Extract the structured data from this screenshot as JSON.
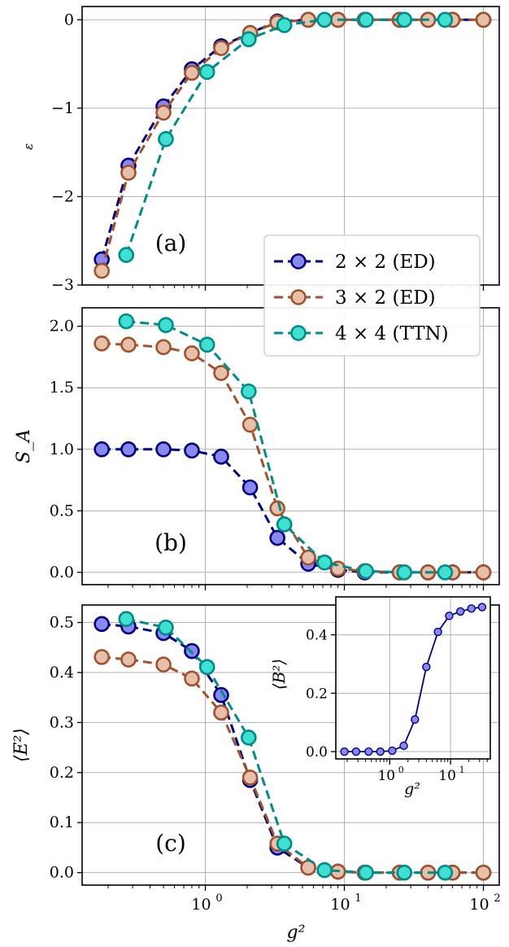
{
  "chart_data": [
    {
      "id": "a",
      "type": "line",
      "panel_label": "(a)",
      "ylabel": "ε",
      "x_scale": "log",
      "xlim": [
        0.13,
        130
      ],
      "ylim": [
        -3.0,
        0.15
      ],
      "yticks": [
        0,
        -1,
        -2,
        -3
      ],
      "ytick_labels": [
        "0",
        "−1",
        "−2",
        "−3"
      ],
      "grid": true,
      "series": [
        {
          "name": "2 × 2 (ED)",
          "color": "#000080",
          "fill": "#8888ee",
          "dashed": true,
          "x": [
            0.18,
            0.28,
            0.5,
            0.8,
            1.3,
            2.1,
            3.3,
            5.5,
            9,
            14,
            25,
            40,
            60,
            100
          ],
          "y": [
            -2.71,
            -1.65,
            -0.98,
            -0.56,
            -0.3,
            -0.15,
            -0.02,
            0,
            0,
            0,
            0,
            0,
            0,
            0
          ]
        },
        {
          "name": "3 × 2 (ED)",
          "color": "#a0522d",
          "fill": "#e6c0a8",
          "dashed": true,
          "x": [
            0.18,
            0.28,
            0.5,
            0.8,
            1.3,
            2.1,
            3.3,
            5.5,
            9,
            14,
            25,
            40,
            60,
            100
          ],
          "y": [
            -2.84,
            -1.73,
            -1.05,
            -0.6,
            -0.32,
            -0.15,
            -0.03,
            0,
            0,
            0,
            0,
            0,
            0,
            0
          ]
        },
        {
          "name": "4 × 4 (TTN)",
          "color": "#008b8b",
          "fill": "#40e0d0",
          "dashed": true,
          "x": [
            0.27,
            0.52,
            1.03,
            2.05,
            3.7,
            7.2,
            14.3,
            27,
            53
          ],
          "y": [
            -2.66,
            -1.35,
            -0.59,
            -0.22,
            -0.06,
            0,
            0,
            0,
            0
          ]
        }
      ]
    },
    {
      "id": "b",
      "type": "line",
      "panel_label": "(b)",
      "ylabel": "S_A",
      "x_scale": "log",
      "xlim": [
        0.13,
        130
      ],
      "ylim": [
        -0.1,
        2.15
      ],
      "yticks": [
        0.0,
        0.5,
        1.0,
        1.5,
        2.0
      ],
      "ytick_labels": [
        "0.0",
        "0.5",
        "1.0",
        "1.5",
        "2.0"
      ],
      "grid": true,
      "series": [
        {
          "name": "2 × 2 (ED)",
          "color": "#000080",
          "fill": "#8888ee",
          "dashed": true,
          "x": [
            0.18,
            0.28,
            0.5,
            0.8,
            1.3,
            2.1,
            3.3,
            5.5,
            9,
            14,
            25,
            40,
            60,
            100
          ],
          "y": [
            1.0,
            1.0,
            1.0,
            0.99,
            0.94,
            0.69,
            0.28,
            0.07,
            0.02,
            0,
            0,
            0,
            0,
            0
          ]
        },
        {
          "name": "3 × 2 (ED)",
          "color": "#a0522d",
          "fill": "#e6c0a8",
          "dashed": true,
          "x": [
            0.18,
            0.28,
            0.5,
            0.8,
            1.3,
            2.1,
            3.3,
            5.5,
            9,
            14,
            25,
            40,
            60,
            100
          ],
          "y": [
            1.86,
            1.85,
            1.83,
            1.78,
            1.62,
            1.2,
            0.52,
            0.12,
            0.03,
            0.01,
            0,
            0,
            0,
            0
          ]
        },
        {
          "name": "4 × 4 (TTN)",
          "color": "#008b8b",
          "fill": "#40e0d0",
          "dashed": true,
          "x": [
            0.27,
            0.52,
            1.03,
            2.05,
            3.7,
            7.2,
            14.3,
            27,
            53
          ],
          "y": [
            2.04,
            2.01,
            1.85,
            1.47,
            0.39,
            0.08,
            0.01,
            0,
            0
          ]
        }
      ]
    },
    {
      "id": "c",
      "type": "line",
      "panel_label": "(c)",
      "ylabel": "⟨E²⟩",
      "xlabel": "g²",
      "x_scale": "log",
      "xlim": [
        0.13,
        130
      ],
      "ylim": [
        -0.025,
        0.535
      ],
      "yticks": [
        0.0,
        0.1,
        0.2,
        0.3,
        0.4,
        0.5
      ],
      "ytick_labels": [
        "0.0",
        "0.1",
        "0.2",
        "0.3",
        "0.4",
        "0.5"
      ],
      "xticks": [
        1,
        10,
        100
      ],
      "xtick_bases": [
        "10",
        "10",
        "10"
      ],
      "xtick_exps": [
        "0",
        "1",
        "2"
      ],
      "grid": true,
      "series": [
        {
          "name": "2 × 2 (ED)",
          "color": "#000080",
          "fill": "#8888ee",
          "dashed": true,
          "x": [
            0.18,
            0.28,
            0.5,
            0.8,
            1.3,
            2.1,
            3.3,
            5.5,
            9,
            14,
            25,
            40,
            60,
            100
          ],
          "y": [
            0.497,
            0.492,
            0.479,
            0.443,
            0.355,
            0.185,
            0.05,
            0.01,
            0.002,
            0,
            0,
            0,
            0,
            0
          ]
        },
        {
          "name": "3 × 2 (ED)",
          "color": "#a0522d",
          "fill": "#e6c0a8",
          "dashed": true,
          "x": [
            0.18,
            0.28,
            0.5,
            0.8,
            1.3,
            2.1,
            3.3,
            5.5,
            9,
            14,
            25,
            40,
            60,
            100
          ],
          "y": [
            0.431,
            0.426,
            0.416,
            0.388,
            0.32,
            0.19,
            0.058,
            0.01,
            0.002,
            0,
            0,
            0,
            0,
            0
          ]
        },
        {
          "name": "4 × 4 (TTN)",
          "color": "#008b8b",
          "fill": "#40e0d0",
          "dashed": true,
          "x": [
            0.27,
            0.52,
            1.03,
            2.05,
            3.7,
            7.2,
            14.3,
            27,
            53
          ],
          "y": [
            0.507,
            0.49,
            0.411,
            0.27,
            0.058,
            0.005,
            0,
            0,
            0
          ]
        }
      ]
    },
    {
      "id": "inset",
      "type": "line",
      "ylabel": "⟨B²⟩",
      "xlabel": "g²",
      "x_scale": "log",
      "xlim": [
        0.13,
        45
      ],
      "ylim": [
        -0.025,
        0.53
      ],
      "yticks": [
        0.0,
        0.2,
        0.4
      ],
      "ytick_labels": [
        "0.0",
        "0.2",
        "0.4"
      ],
      "xticks": [
        1,
        10
      ],
      "xtick_bases": [
        "10",
        "10"
      ],
      "xtick_exps": [
        "0",
        "1"
      ],
      "grid": true,
      "series": [
        {
          "color": "#000080",
          "fill": "#8888ee",
          "dashed": false,
          "x": [
            0.18,
            0.28,
            0.45,
            0.7,
            1.1,
            1.7,
            2.6,
            4.0,
            6.2,
            9.5,
            14.5,
            22,
            33
          ],
          "y": [
            0.0,
            0.0,
            0.0,
            0.0,
            0.003,
            0.02,
            0.11,
            0.29,
            0.41,
            0.465,
            0.48,
            0.49,
            0.495
          ]
        }
      ]
    }
  ],
  "legend": {
    "placement": "upper right of panel (a) spanning into (b)",
    "entries": [
      "2 × 2 (ED)",
      "3 × 2 (ED)",
      "4 × 4 (TTN)"
    ]
  }
}
